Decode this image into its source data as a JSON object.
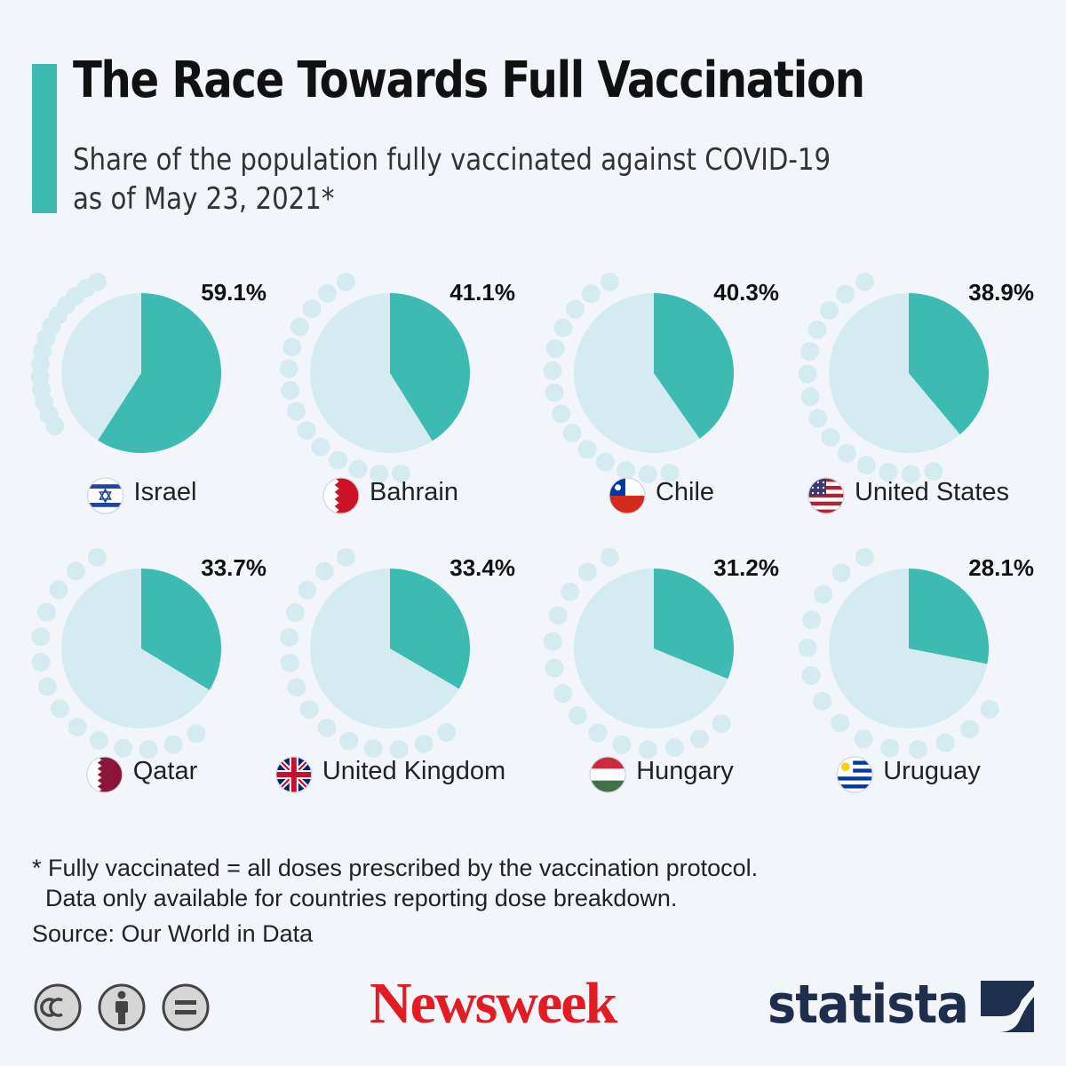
{
  "header": {
    "title": "The Race Towards Full Vaccination",
    "subtitle_line1": "Share of the population fully vaccinated against COVID-19",
    "subtitle_line2": "as of May 23, 2021*"
  },
  "colors": {
    "accent": "#3dbbb3",
    "pie_rest": "#d4ecef",
    "dots": "#d4ecef",
    "newsweek_red": "#e31b23",
    "statista_navy": "#1e2f4d"
  },
  "chart_data": {
    "type": "pie",
    "title": "The Race Towards Full Vaccination",
    "subtitle": "Share of the population fully vaccinated against COVID-19 as of May 23, 2021*",
    "unit": "%",
    "series": [
      {
        "name": "Israel",
        "value": 59.1,
        "label": "59.1%",
        "flag_icon": "israel-flag-icon"
      },
      {
        "name": "Bahrain",
        "value": 41.1,
        "label": "41.1%",
        "flag_icon": "bahrain-flag-icon"
      },
      {
        "name": "Chile",
        "value": 40.3,
        "label": "40.3%",
        "flag_icon": "chile-flag-icon"
      },
      {
        "name": "United States",
        "value": 38.9,
        "label": "38.9%",
        "flag_icon": "us-flag-icon"
      },
      {
        "name": "Qatar",
        "value": 33.7,
        "label": "33.7%",
        "flag_icon": "qatar-flag-icon"
      },
      {
        "name": "United Kingdom",
        "value": 33.4,
        "label": "33.4%",
        "flag_icon": "uk-flag-icon"
      },
      {
        "name": "Hungary",
        "value": 31.2,
        "label": "31.2%",
        "flag_icon": "hungary-flag-icon"
      },
      {
        "name": "Uruguay",
        "value": 28.1,
        "label": "28.1%",
        "flag_icon": "uruguay-flag-icon"
      }
    ]
  },
  "footer": {
    "footnote_line1": "* Fully vaccinated = all doses prescribed by the vaccination protocol.",
    "footnote_line2": "  Data only available for countries reporting dose breakdown.",
    "source": "Source: Our World in Data",
    "license_icons": [
      "cc-icon",
      "attribution-icon",
      "no-derivatives-icon"
    ],
    "newsweek_logo": "Newsweek",
    "statista_logo": "statista"
  }
}
